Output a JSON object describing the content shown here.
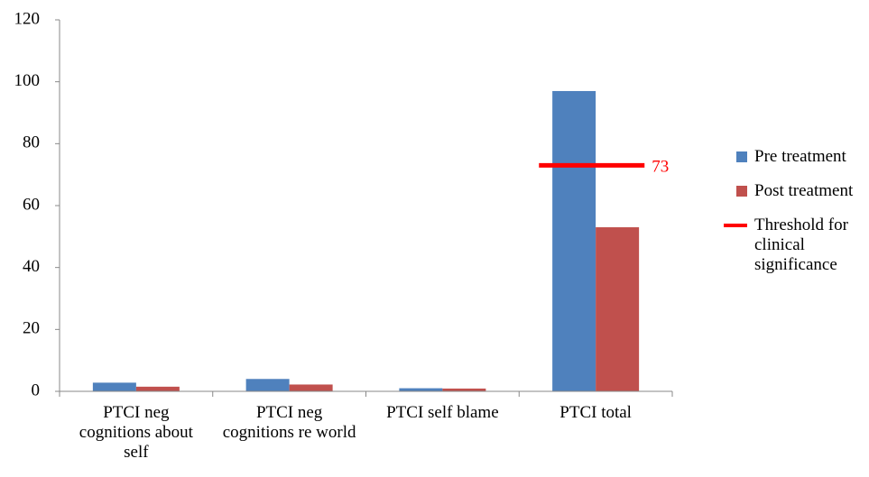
{
  "chart_data": {
    "type": "bar",
    "categories": [
      "PTCI neg cognitions about self",
      "PTCI neg cognitions re world",
      "PTCI self blame",
      "PTCI total"
    ],
    "series": [
      {
        "name": "Pre treatment",
        "color": "#4f81bd",
        "values": [
          2.8,
          4,
          1,
          97
        ]
      },
      {
        "name": "Post treatment",
        "color": "#c0504d",
        "values": [
          1.5,
          2.2,
          0.9,
          53
        ]
      }
    ],
    "threshold": {
      "name": "Threshold for clinical significance",
      "value": 73,
      "color": "#ff0000"
    },
    "ylim": [
      0,
      120
    ],
    "yticks": [
      0,
      20,
      40,
      60,
      80,
      100,
      120
    ],
    "grid": false,
    "legend": "right"
  }
}
